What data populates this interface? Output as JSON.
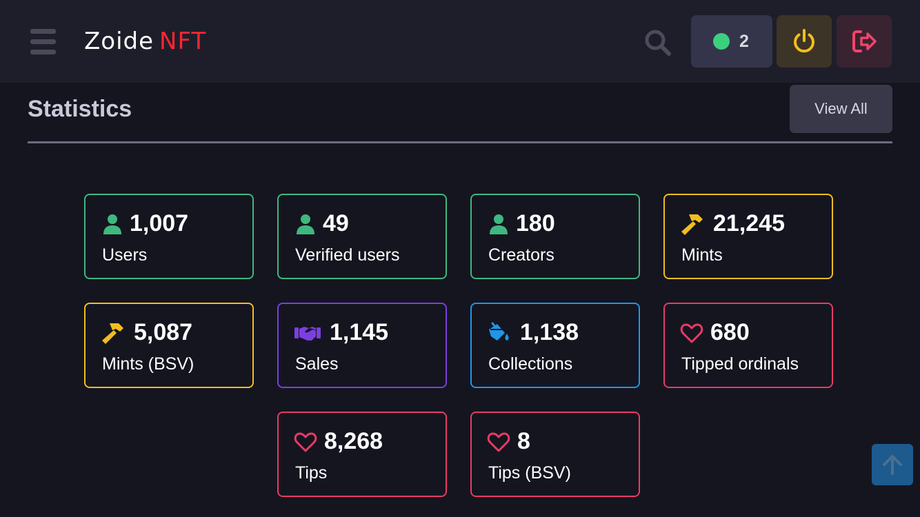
{
  "header": {
    "logo_part1": "Zoide",
    "logo_part2": "NFT",
    "status_count": "2",
    "icons": {
      "menu": "hamburger-icon",
      "search": "search-icon",
      "power": "power-icon",
      "logout": "logout-icon"
    },
    "colors": {
      "status_dot": "#3ccf7f",
      "power": "#f2be1c",
      "logout": "#f2446b",
      "logo_accent": "#ff2631"
    }
  },
  "statistics": {
    "title": "Statistics",
    "view_all_label": "View All",
    "cards": [
      {
        "value": "1,007",
        "label": "Users",
        "icon": "user-icon",
        "color": "#3fb87e"
      },
      {
        "value": "49",
        "label": "Verified users",
        "icon": "user-icon",
        "color": "#3fb87e"
      },
      {
        "value": "180",
        "label": "Creators",
        "icon": "user-icon",
        "color": "#3fb87e"
      },
      {
        "value": "21,245",
        "label": "Mints",
        "icon": "hammer-icon",
        "color": "#f2be1c"
      },
      {
        "value": "5,087",
        "label": "Mints (BSV)",
        "icon": "hammer-icon",
        "color": "#f2be1c"
      },
      {
        "value": "1,145",
        "label": "Sales",
        "icon": "handshake-icon",
        "color": "#7b3fe0"
      },
      {
        "value": "1,138",
        "label": "Collections",
        "icon": "paint-bucket-icon",
        "color": "#1e97e6"
      },
      {
        "value": "680",
        "label": "Tipped ordinals",
        "icon": "heart-icon",
        "color": "#e83b64"
      },
      {
        "value": "8,268",
        "label": "Tips",
        "icon": "heart-icon",
        "color": "#e83b64"
      },
      {
        "value": "8",
        "label": "Tips (BSV)",
        "icon": "heart-icon",
        "color": "#e83b64"
      }
    ]
  },
  "scroll_top": {
    "icon": "arrow-up-icon"
  }
}
